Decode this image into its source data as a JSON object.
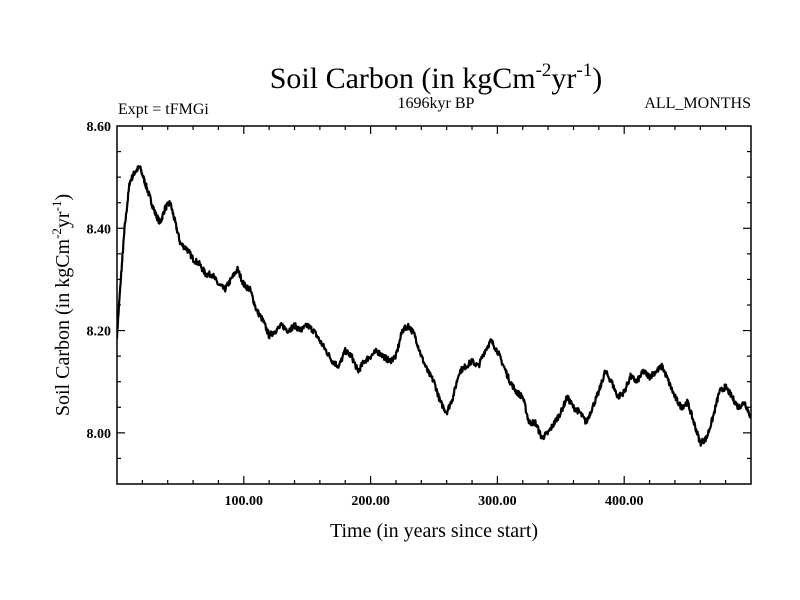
{
  "chart_data": {
    "type": "line",
    "title": "Soil Carbon (in kgCm",
    "title_exp1": "-2",
    "title_mid": "yr",
    "title_exp2": "-1",
    "title_end": ")",
    "left_label": "Expt = tFMGi",
    "center_label": "1696kyr BP",
    "right_label": "ALL_MONTHS",
    "xlabel": "Time (in years since start)",
    "ylabel_main": "Soil Carbon (in kgCm",
    "ylabel_exp1": "-2",
    "ylabel_mid": "yr",
    "ylabel_exp2": "-1",
    "ylabel_end": ")",
    "xlim": [
      0,
      500
    ],
    "ylim": [
      7.9,
      8.6
    ],
    "x_ticks": [
      {
        "value": 100,
        "label": "100.00"
      },
      {
        "value": 200,
        "label": "200.00"
      },
      {
        "value": 300,
        "label": "300.00"
      },
      {
        "value": 400,
        "label": "400.00"
      }
    ],
    "y_ticks": [
      {
        "value": 8.0,
        "label": "8.00"
      },
      {
        "value": 8.2,
        "label": "8.20"
      },
      {
        "value": 8.4,
        "label": "8.40"
      },
      {
        "value": 8.6,
        "label": "8.60"
      }
    ],
    "series": [
      {
        "name": "Soil Carbon",
        "color": "#000000",
        "x": [
          0,
          3,
          6,
          10,
          14,
          18,
          22,
          26,
          30,
          34,
          38,
          42,
          46,
          50,
          55,
          60,
          65,
          70,
          75,
          80,
          85,
          90,
          95,
          100,
          105,
          110,
          115,
          120,
          125,
          130,
          135,
          140,
          145,
          150,
          155,
          160,
          165,
          170,
          175,
          180,
          185,
          190,
          195,
          200,
          205,
          210,
          215,
          220,
          225,
          230,
          235,
          240,
          245,
          250,
          255,
          260,
          265,
          270,
          275,
          280,
          285,
          290,
          295,
          300,
          305,
          310,
          315,
          320,
          325,
          330,
          335,
          340,
          345,
          350,
          355,
          360,
          365,
          370,
          375,
          380,
          385,
          390,
          395,
          400,
          405,
          410,
          415,
          420,
          425,
          430,
          435,
          440,
          445,
          450,
          455,
          460,
          465,
          470,
          475,
          480,
          485,
          490,
          495,
          500
        ],
        "y": [
          8.19,
          8.3,
          8.4,
          8.49,
          8.51,
          8.52,
          8.49,
          8.46,
          8.43,
          8.41,
          8.44,
          8.45,
          8.41,
          8.37,
          8.36,
          8.34,
          8.33,
          8.31,
          8.31,
          8.29,
          8.28,
          8.3,
          8.32,
          8.29,
          8.28,
          8.24,
          8.22,
          8.19,
          8.2,
          8.21,
          8.2,
          8.21,
          8.2,
          8.21,
          8.2,
          8.18,
          8.16,
          8.14,
          8.13,
          8.16,
          8.15,
          8.12,
          8.14,
          8.15,
          8.16,
          8.15,
          8.14,
          8.15,
          8.2,
          8.21,
          8.19,
          8.15,
          8.12,
          8.1,
          8.06,
          8.04,
          8.07,
          8.12,
          8.13,
          8.14,
          8.13,
          8.16,
          8.18,
          8.16,
          8.13,
          8.1,
          8.08,
          8.07,
          8.02,
          8.02,
          7.99,
          8.0,
          8.02,
          8.04,
          8.07,
          8.05,
          8.04,
          8.02,
          8.05,
          8.08,
          8.12,
          8.1,
          8.07,
          8.08,
          8.11,
          8.1,
          8.12,
          8.11,
          8.12,
          8.13,
          8.1,
          8.07,
          8.05,
          8.06,
          8.02,
          7.98,
          7.99,
          8.03,
          8.08,
          8.09,
          8.07,
          8.05,
          8.06,
          8.03
        ]
      }
    ]
  }
}
